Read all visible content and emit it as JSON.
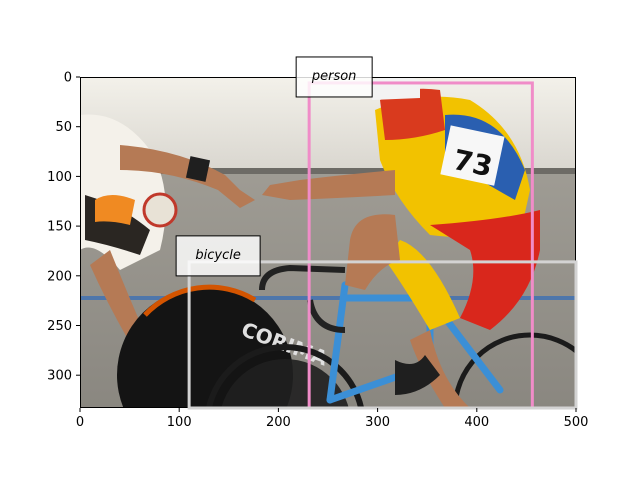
{
  "axes": {
    "x_ticks": [
      "0",
      "100",
      "200",
      "300",
      "400",
      "500"
    ],
    "y_ticks": [
      "0",
      "50",
      "100",
      "150",
      "200",
      "250",
      "300"
    ],
    "xlim": [
      0,
      500
    ],
    "ylim": [
      333,
      0
    ]
  },
  "detections": [
    {
      "label": "person",
      "color": "#f08cc8",
      "bbox_data": [
        231,
        6,
        456,
        333
      ]
    },
    {
      "label": "bicycle",
      "color": "#d3d3d3",
      "bbox_data": [
        110,
        186,
        500,
        333
      ]
    }
  ],
  "scene": {
    "description": "Two track cyclists on a velodrome; the right rider in a red-yellow-blue jersey with number 73 reaches back to hand-sling the left rider."
  }
}
